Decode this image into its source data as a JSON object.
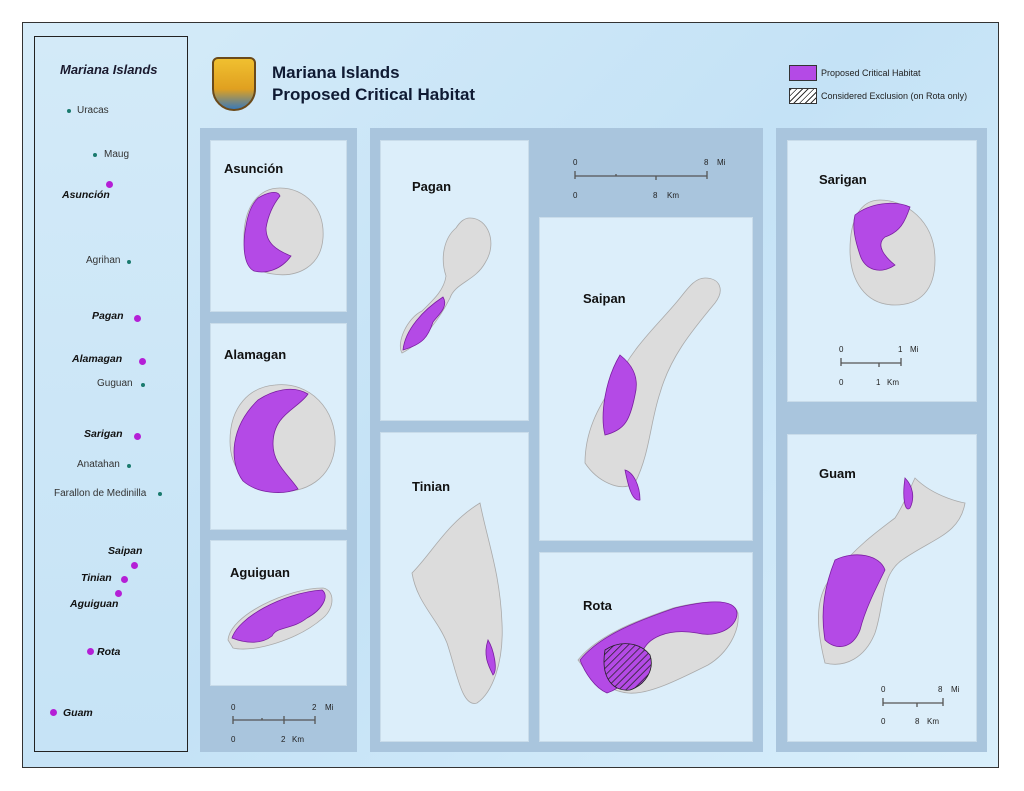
{
  "header": {
    "title_line1": "Mariana Islands",
    "title_line2": "Proposed Critical Habitat",
    "logo": "us-fish-and-wildlife-service-seal"
  },
  "legend": {
    "items": [
      {
        "label": "Proposed Critical Habitat",
        "color": "#b44ae6"
      },
      {
        "label": "Considered Exclusion (on Rota only)",
        "pattern": "diagonal-hatch"
      }
    ]
  },
  "overview": {
    "title": "Mariana Islands",
    "islands": [
      {
        "name": "Uracas",
        "habitat": false
      },
      {
        "name": "Maug",
        "habitat": false
      },
      {
        "name": "Asunción",
        "habitat": true
      },
      {
        "name": "Agrihan",
        "habitat": false
      },
      {
        "name": "Pagan",
        "habitat": true
      },
      {
        "name": "Alamagan",
        "habitat": true
      },
      {
        "name": "Guguan",
        "habitat": false
      },
      {
        "name": "Sarigan",
        "habitat": true
      },
      {
        "name": "Anatahan",
        "habitat": false
      },
      {
        "name": "Farallon de Medinilla",
        "habitat": false
      },
      {
        "name": "Saipan",
        "habitat": true
      },
      {
        "name": "Tinian",
        "habitat": true
      },
      {
        "name": "Aguiguan",
        "habitat": true
      },
      {
        "name": "Rota",
        "habitat": true
      },
      {
        "name": "Guam",
        "habitat": true
      }
    ]
  },
  "panels": {
    "asuncion": "Asunción",
    "alamagan": "Alamagan",
    "aguiguan": "Aguiguan",
    "pagan": "Pagan",
    "tinian": "Tinian",
    "saipan": "Saipan",
    "rota": "Rota",
    "sarigan": "Sarigan",
    "guam": "Guam"
  },
  "scalebars": [
    {
      "zero": "0",
      "mi": "2",
      "mi_unit": "Mi",
      "km": "2",
      "km_unit": "Km"
    },
    {
      "zero": "0",
      "mi": "8",
      "mi_unit": "Mi",
      "km": "8",
      "km_unit": "Km"
    },
    {
      "zero": "0",
      "mi": "1",
      "mi_unit": "Mi",
      "km": "1",
      "km_unit": "Km"
    },
    {
      "zero": "0",
      "mi": "8",
      "mi_unit": "Mi",
      "km": "8",
      "km_unit": "Km"
    }
  ],
  "colors": {
    "habitat": "#b44ae6",
    "terrain": "#d9d9d9",
    "water": "#d6ecf9"
  }
}
